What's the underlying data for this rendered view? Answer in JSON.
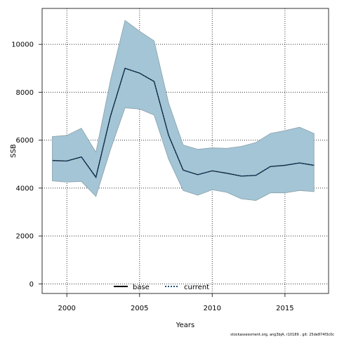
{
  "chart_data": {
    "type": "area",
    "xlabel": "Years",
    "ylabel": "SSB",
    "xlim": [
      1998.3,
      2018.0
    ],
    "ylim": [
      -400,
      11500
    ],
    "x_ticks": [
      2000,
      2005,
      2010,
      2015
    ],
    "y_ticks": [
      0,
      2000,
      4000,
      6000,
      8000,
      10000
    ],
    "grid": true,
    "legend_position": "bottom-center",
    "x": [
      1999,
      2000,
      2001,
      2002,
      2003,
      2004,
      2005,
      2006,
      2007,
      2008,
      2009,
      2010,
      2011,
      2012,
      2013,
      2014,
      2015,
      2016,
      2017
    ],
    "band": {
      "upper": [
        6150,
        6200,
        6500,
        5500,
        8500,
        11000,
        10550,
        10150,
        7550,
        5800,
        5620,
        5680,
        5660,
        5740,
        5900,
        6280,
        6400,
        6540,
        6280
      ],
      "lower": [
        4300,
        4250,
        4280,
        3650,
        5600,
        7350,
        7300,
        7050,
        5200,
        3900,
        3700,
        3930,
        3820,
        3550,
        3480,
        3800,
        3800,
        3900,
        3850
      ],
      "color": "#a3c5d6"
    },
    "series": [
      {
        "name": "base",
        "style": "solid",
        "color": "#000000",
        "values": [
          5150,
          5130,
          5300,
          4450,
          7000,
          9000,
          8800,
          8450,
          6200,
          4750,
          4560,
          4720,
          4620,
          4500,
          4530,
          4900,
          4950,
          5050,
          4950
        ]
      },
      {
        "name": "current",
        "style": "dotted",
        "color": "#1f4e79",
        "values": [
          5150,
          5130,
          5300,
          4450,
          7000,
          9000,
          8800,
          8450,
          6200,
          4750,
          4560,
          4720,
          4620,
          4500,
          4530,
          4900,
          4950,
          5050,
          4950
        ]
      }
    ]
  },
  "footer": "stockassessment.org, ang3bjA, r10189 , git: 25de874f3c0c"
}
